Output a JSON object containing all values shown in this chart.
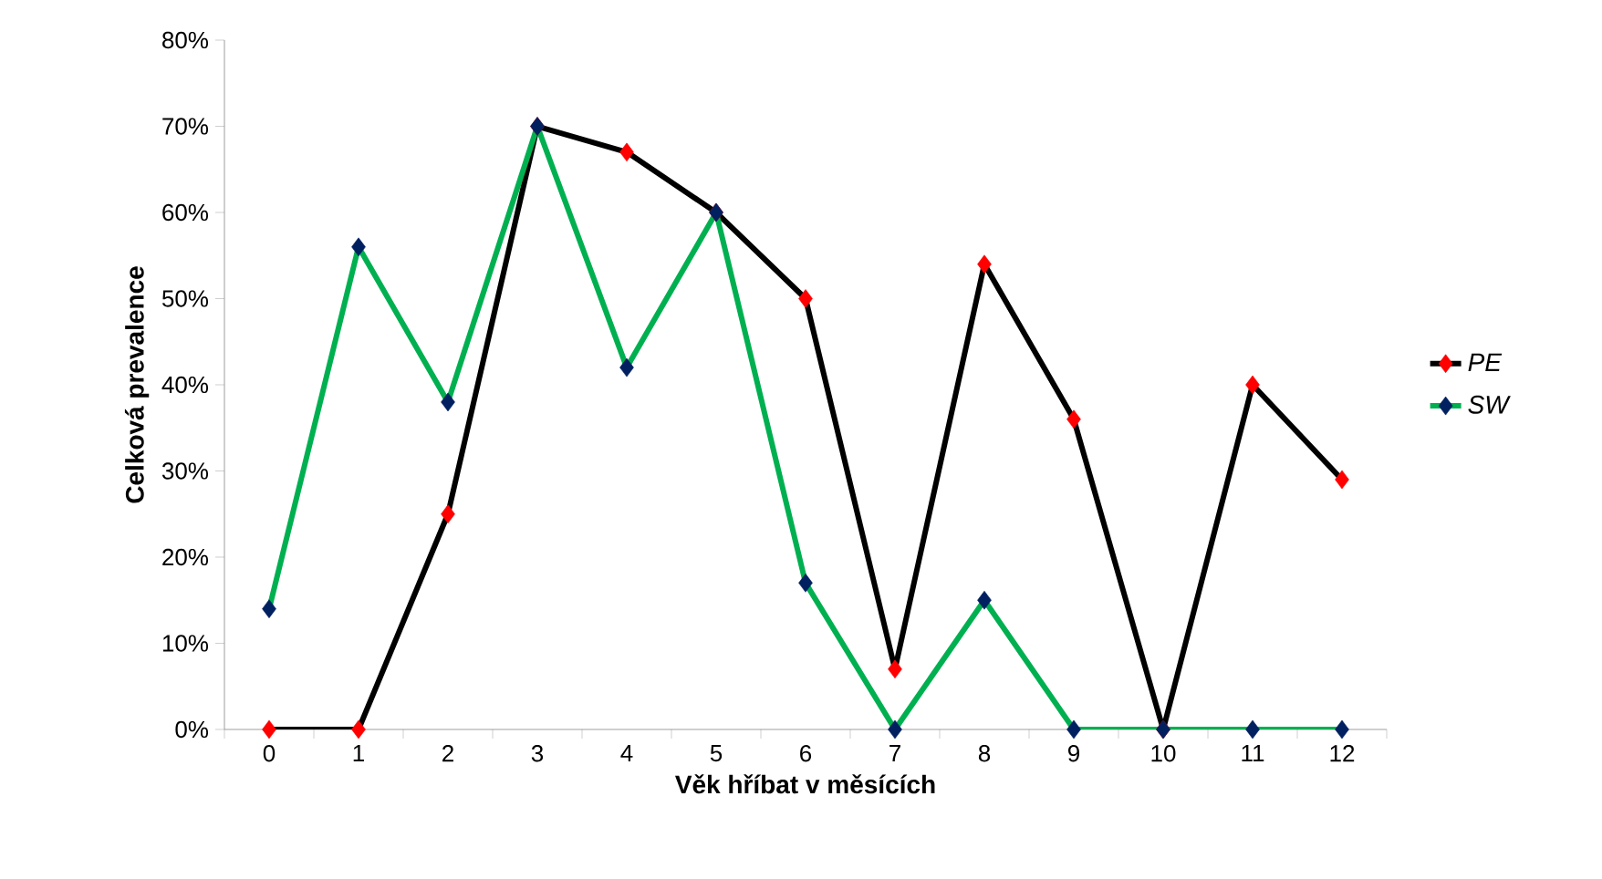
{
  "chart_data": {
    "type": "line",
    "xlabel": "Věk hříbat v měsících",
    "ylabel": "Celková prevalence",
    "categories": [
      "0",
      "1",
      "2",
      "3",
      "4",
      "5",
      "6",
      "7",
      "8",
      "9",
      "10",
      "11",
      "12"
    ],
    "series": [
      {
        "name": "PE",
        "color": "#000000",
        "colors": [
          "#ff0000",
          "#ff0000",
          "#ff0000",
          "#ff0000",
          "#ff0000",
          "#ff0000",
          "#ff0000",
          "#ff0000",
          "#ff0000",
          "#ff0000",
          "#ff0000",
          "#ff0000",
          "#ff0000"
        ],
        "values": [
          0,
          0,
          25,
          70,
          67,
          60,
          50,
          7,
          54,
          36,
          0,
          40,
          29
        ]
      },
      {
        "name": "SW",
        "color": "#00b050",
        "colors": [
          "#002060",
          "#002060",
          "#002060",
          "#002060",
          "#002060",
          "#002060",
          "#002060",
          "#002060",
          "#002060",
          "#002060",
          "#002060",
          "#002060",
          "#002060"
        ],
        "values": [
          14,
          56,
          38,
          70,
          42,
          60,
          17,
          0,
          15,
          0,
          0,
          0,
          0
        ]
      }
    ],
    "ylim": [
      0,
      80
    ],
    "yticks": [
      {
        "value": 0,
        "label": "0%"
      },
      {
        "value": 10,
        "label": "10%"
      },
      {
        "value": 20,
        "label": "20%"
      },
      {
        "value": 30,
        "label": "30%"
      },
      {
        "value": 40,
        "label": "40%"
      },
      {
        "value": 50,
        "label": "50%"
      },
      {
        "value": 60,
        "label": "60%"
      },
      {
        "value": 70,
        "label": "70%"
      },
      {
        "value": 80,
        "label": "80%"
      }
    ],
    "legend": "right",
    "marker": "diamond",
    "line_style": "solid",
    "grid": false
  }
}
